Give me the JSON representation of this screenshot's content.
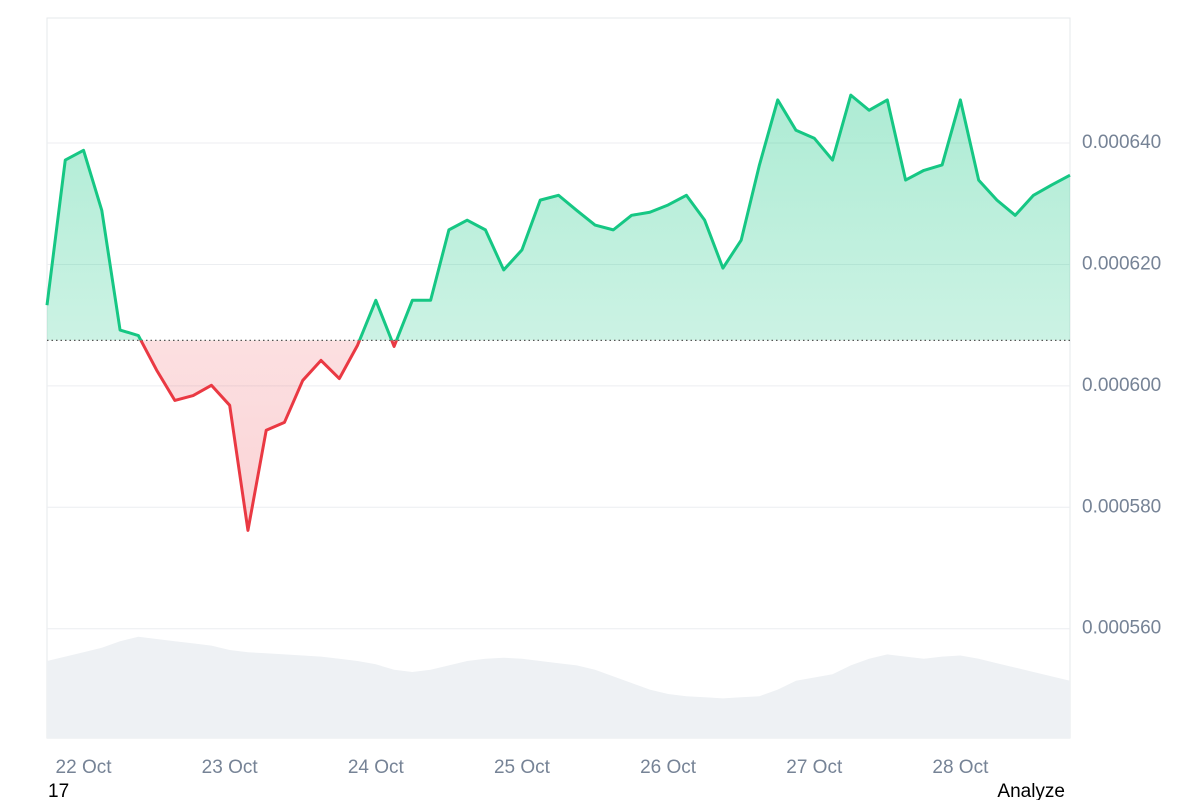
{
  "chart_data": {
    "type": "line",
    "categories": [
      null,
      null,
      "22 Oct",
      null,
      null,
      null,
      null,
      null,
      null,
      null,
      "23 Oct",
      null,
      null,
      null,
      null,
      null,
      null,
      null,
      "24 Oct",
      null,
      null,
      null,
      null,
      null,
      null,
      null,
      "25 Oct",
      null,
      null,
      null,
      null,
      null,
      null,
      null,
      "26 Oct",
      null,
      null,
      null,
      null,
      null,
      null,
      null,
      "27 Oct",
      null,
      null,
      null,
      null,
      null,
      null,
      null,
      "28 Oct",
      null,
      null,
      null,
      null,
      null,
      null
    ],
    "series": [
      {
        "color": "#16c784",
        "values": [
          0.0006133,
          0.0006372,
          0.0006388,
          0.0006289,
          0.0006092,
          0.0006083,
          0.0006026,
          0.0005976,
          0.0005984,
          0.0006001,
          0.0005968,
          0.0005762,
          0.0005927,
          0.000594,
          0.0006009,
          0.0006042,
          0.0006012,
          0.0006067,
          0.0006141,
          0.0006065,
          0.0006141,
          0.0006141,
          0.0006257,
          0.0006273,
          0.0006257,
          0.0006191,
          0.0006224,
          0.0006306,
          0.0006314,
          0.0006289,
          0.0006265,
          0.0006257,
          0.0006281,
          0.0006286,
          0.0006298,
          0.0006314,
          0.0006273,
          0.0006194,
          0.000624,
          0.0006364,
          0.0006471,
          0.0006421,
          0.0006408,
          0.0006372,
          0.0006479,
          0.0006454,
          0.0006471,
          0.0006339,
          0.0006355,
          0.0006364,
          0.0006471,
          0.0006339,
          0.0006306,
          0.0006281,
          0.0006314,
          0.0006331,
          0.0006347
        ]
      },
      {
        "color": "#eef1f4",
        "axis": "y2",
        "values": [
          70,
          74,
          78,
          82,
          88,
          92,
          90,
          88,
          86,
          84,
          80,
          78,
          77,
          76,
          75,
          74,
          72,
          70,
          67,
          62,
          60,
          62,
          66,
          70,
          72,
          73,
          72,
          70,
          68,
          66,
          62,
          56,
          50,
          44,
          40,
          38,
          37,
          36,
          37,
          38,
          44,
          52,
          55,
          58,
          66,
          72,
          76,
          74,
          72,
          74,
          75,
          72,
          68,
          64,
          60,
          56,
          52
        ]
      }
    ],
    "baseline": 0.0006075,
    "below_color": "#ea3943",
    "ylim": [
      0.000542,
      0.0006606
    ],
    "yticks": [
      {
        "value": 0.00056,
        "label": "0.000560"
      },
      {
        "value": 0.00058,
        "label": "0.000580"
      },
      {
        "value": 0.0006,
        "label": "0.000600"
      },
      {
        "value": 0.00062,
        "label": "0.000620"
      },
      {
        "value": 0.00064,
        "label": "0.000640"
      }
    ],
    "y2lim": [
      0,
      100
    ],
    "grid": true,
    "footer_left": "17",
    "footer_right": "Analyze"
  }
}
